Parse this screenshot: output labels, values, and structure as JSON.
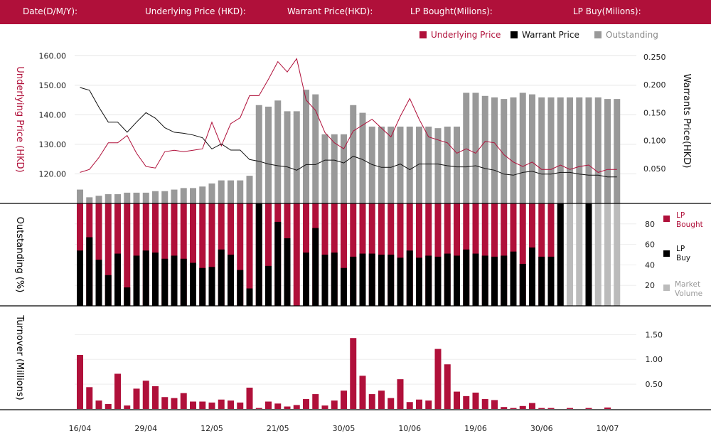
{
  "header": {
    "date_label": "Date(D/M/Y):",
    "underlying_label": "Underlying Price (HKD):",
    "warrant_label": "Warrant  Price(HKD):",
    "lp_bought_label": "LP Bought(Milions):",
    "lp_buy_label": "LP Buy(Milions):"
  },
  "legend": {
    "underlying": "Underlying Price",
    "warrant": "Warrant  Price",
    "outstanding": "Outstanding"
  },
  "side_legend": {
    "lp_bought_1": "LP",
    "lp_bought_2": "Bought",
    "lp_buy_1": "LP",
    "lp_buy_2": "Buy",
    "market_1": "Market",
    "market_2": "Volume"
  },
  "colors": {
    "brand": "#b0103a",
    "underlying": "#b0103a",
    "warrant": "#111111",
    "outstanding": "#999999",
    "lp_bought": "#b0103a",
    "lp_buy": "#000000",
    "market": "#bbbbbb",
    "turnover": "#b0103a"
  },
  "chart_data": {
    "type": "combo",
    "x_ticks": [
      {
        "i": 0,
        "label": "16/04"
      },
      {
        "i": 7,
        "label": "29/04"
      },
      {
        "i": 14,
        "label": "12/05"
      },
      {
        "i": 21,
        "label": "21/05"
      },
      {
        "i": 28,
        "label": "30/05"
      },
      {
        "i": 35,
        "label": "10/06"
      },
      {
        "i": 42,
        "label": "19/06"
      },
      {
        "i": 49,
        "label": "30/06"
      },
      {
        "i": 56,
        "label": "10/07"
      }
    ],
    "price_panel": {
      "left_axis": {
        "title": "Underlying Price (HKD)",
        "ticks": [
          120,
          130,
          140,
          150,
          160
        ],
        "tick_labels": [
          "120.00",
          "130.00",
          "140.00",
          "150.00",
          "160.00"
        ],
        "range": [
          110,
          162
        ]
      },
      "right_axis": {
        "title": "Warrants  Price(HKD)",
        "ticks": [
          0.05,
          0.1,
          0.15,
          0.2,
          0.25
        ],
        "tick_labels": [
          "0.050",
          "0.100",
          "0.150",
          "0.200",
          "0.250"
        ],
        "range": [
          -0.0125,
          0.2625
        ]
      },
      "outstanding_axis_range": [
        0,
        100
      ],
      "underlying": [
        120.5,
        121.5,
        125.5,
        130.5,
        130.5,
        133,
        127,
        122.5,
        122,
        127.5,
        128,
        127.5,
        128,
        128.5,
        137.5,
        129.5,
        137,
        139,
        146.5,
        146.5,
        152,
        158,
        154.5,
        159,
        145,
        141.5,
        134,
        130.5,
        128.5,
        134.5,
        136.5,
        138.5,
        135.5,
        132.5,
        139.5,
        145.5,
        138.5,
        132.5,
        131.5,
        130.5,
        127,
        128.5,
        127,
        131,
        130.5,
        126.5,
        124,
        122.5,
        124,
        121.5,
        121.5,
        123,
        121.5,
        122.5,
        123,
        120.5,
        121.5,
        121.5
      ],
      "warrant": [
        0.195,
        0.19,
        0.16,
        0.133,
        0.133,
        0.115,
        0.133,
        0.15,
        0.14,
        0.123,
        0.115,
        0.113,
        0.11,
        0.105,
        0.085,
        0.094,
        0.083,
        0.083,
        0.066,
        0.063,
        0.058,
        0.055,
        0.053,
        0.047,
        0.057,
        0.057,
        0.065,
        0.065,
        0.06,
        0.072,
        0.066,
        0.057,
        0.052,
        0.052,
        0.058,
        0.048,
        0.058,
        0.058,
        0.058,
        0.055,
        0.053,
        0.053,
        0.055,
        0.05,
        0.047,
        0.04,
        0.038,
        0.043,
        0.045,
        0.04,
        0.04,
        0.043,
        0.043,
        0.04,
        0.038,
        0.038,
        0.035,
        0.035
      ],
      "outstanding": [
        9,
        4,
        5,
        6,
        6,
        7,
        7,
        7,
        8,
        8,
        9,
        10,
        10,
        11,
        13,
        15,
        15,
        15,
        18,
        64,
        63,
        67,
        60,
        60,
        74,
        71,
        45,
        45,
        45,
        64,
        59,
        50,
        50,
        50,
        50,
        50,
        50,
        50,
        49,
        50,
        50,
        72,
        72,
        70,
        69,
        68,
        69,
        72,
        71,
        69,
        69,
        69,
        69,
        69,
        69,
        69,
        68,
        68
      ]
    },
    "lp_panel": {
      "axis": {
        "title": "Outstanding (%)",
        "ticks": [
          20,
          40,
          60,
          80
        ],
        "tick_labels": [
          "20",
          "40",
          "60",
          "80"
        ],
        "range": [
          0,
          100
        ]
      },
      "market_volume": [
        1,
        0,
        0,
        0,
        0,
        0,
        2,
        0,
        0,
        0,
        0,
        0,
        0,
        2,
        0,
        0,
        7,
        0,
        4,
        0,
        0,
        0,
        5,
        0,
        2,
        0,
        3,
        0,
        5,
        5,
        5,
        4,
        4,
        4,
        7,
        0,
        7,
        7,
        6,
        6,
        6,
        6,
        6,
        5,
        0,
        0,
        0,
        0,
        0,
        8,
        6,
        100,
        100,
        100,
        100,
        100,
        100,
        100
      ],
      "lp_buy": [
        54,
        67,
        45,
        30,
        51,
        18,
        49,
        54,
        52,
        46,
        49,
        46,
        42,
        37,
        38,
        55,
        50,
        35,
        17,
        100,
        39,
        82,
        66,
        0,
        52,
        76,
        50,
        52,
        37,
        48,
        51,
        51,
        50,
        50,
        47,
        54,
        47,
        49,
        48,
        51,
        49,
        55,
        51,
        49,
        48,
        49,
        53,
        41,
        57,
        48,
        48,
        100,
        0,
        0,
        100,
        0,
        0,
        0
      ],
      "lp_bought": [
        100,
        100,
        100,
        100,
        100,
        100,
        100,
        100,
        100,
        100,
        100,
        100,
        100,
        100,
        100,
        100,
        100,
        100,
        100,
        100,
        100,
        100,
        100,
        100,
        100,
        100,
        100,
        100,
        100,
        100,
        100,
        100,
        100,
        100,
        100,
        100,
        100,
        100,
        100,
        100,
        100,
        100,
        100,
        100,
        100,
        100,
        100,
        100,
        100,
        100,
        100,
        0,
        0,
        0,
        0,
        0,
        0,
        0
      ]
    },
    "turnover_panel": {
      "axis": {
        "title": "Turnover (Millions)",
        "ticks": [
          0.5,
          1.0,
          1.5
        ],
        "tick_labels": [
          "0.50",
          "1.00",
          "1.50"
        ],
        "range": [
          0,
          1.72
        ]
      },
      "values": [
        1.09,
        0.44,
        0.17,
        0.1,
        0.71,
        0.07,
        0.41,
        0.57,
        0.46,
        0.24,
        0.22,
        0.32,
        0.15,
        0.15,
        0.13,
        0.19,
        0.17,
        0.13,
        0.43,
        0.02,
        0.15,
        0.11,
        0.05,
        0.08,
        0.2,
        0.3,
        0.07,
        0.17,
        0.37,
        1.43,
        0.67,
        0.3,
        0.37,
        0.22,
        0.6,
        0.14,
        0.19,
        0.17,
        1.21,
        0.9,
        0.35,
        0.26,
        0.33,
        0.2,
        0.18,
        0.04,
        0.02,
        0.06,
        0.12,
        0.02,
        0.02,
        0,
        0.02,
        0,
        0.02,
        0,
        0.03,
        0
      ]
    }
  }
}
